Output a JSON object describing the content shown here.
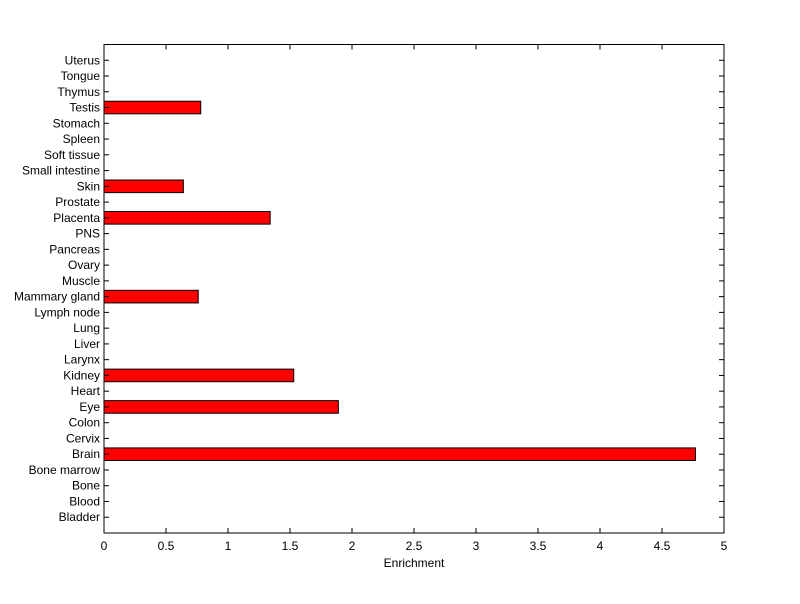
{
  "chart_data": {
    "type": "bar",
    "orientation": "horizontal",
    "categories": [
      "Bladder",
      "Blood",
      "Bone",
      "Bone marrow",
      "Brain",
      "Cervix",
      "Colon",
      "Eye",
      "Heart",
      "Kidney",
      "Larynx",
      "Liver",
      "Lung",
      "Lymph node",
      "Mammary gland",
      "Muscle",
      "Ovary",
      "Pancreas",
      "PNS",
      "Placenta",
      "Prostate",
      "Skin",
      "Small intestine",
      "Soft tissue",
      "Spleen",
      "Stomach",
      "Testis",
      "Thymus",
      "Tongue",
      "Uterus"
    ],
    "values": [
      0,
      0,
      0,
      0,
      4.77,
      0,
      0,
      1.89,
      0,
      1.53,
      0,
      0,
      0,
      0,
      0.76,
      0,
      0,
      0,
      0,
      1.34,
      0,
      0.64,
      0,
      0,
      0,
      0,
      0.78,
      0,
      0,
      0
    ],
    "title": "",
    "xlabel": "Enrichment",
    "ylabel": "",
    "xlim": [
      0,
      5
    ],
    "xticks": [
      "0",
      "0.5",
      "1",
      "1.5",
      "2",
      "2.5",
      "3",
      "3.5",
      "4",
      "4.5",
      "5"
    ],
    "grid": false,
    "bar_color": "#ff0000",
    "edge_color": "#000000"
  }
}
